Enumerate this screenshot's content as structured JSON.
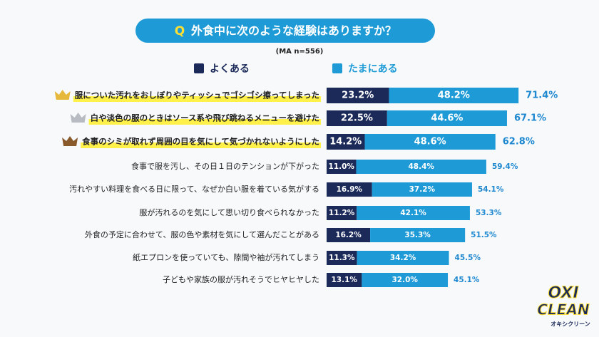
{
  "chart_data": {
    "type": "stacked-bar-horizontal",
    "title_marker": "Q",
    "title": "外食中に次のような経験はありますか？",
    "subtitle": "(MA n=556)",
    "categories": [
      "服についた汚れをおしぼりやティッシュでゴシゴシ擦ってしまった",
      "白や淡色の服のときはソース系や飛び跳ねるメニューを避けた",
      "食事のシミが取れず周囲の目を気にして気づかれないようにした",
      "食事で服を汚し、その日１日のテンションが下がった",
      "汚れやすい料理を食べる日に限って、なぜか白い服を着ている気がする",
      "服が汚れるのを気にして思い切り食べられなかった",
      "外食の予定に合わせて、服の色や素材を気にして選んだことがある",
      "紙エプロンを使っていても、隙間や袖が汚れてしまう",
      "子どもや家族の服が汚れそうでヒヤヒヤした"
    ],
    "series": [
      {
        "name": "よくある",
        "color": "#1c2a5a",
        "values": [
          23.2,
          22.5,
          14.2,
          11.0,
          16.9,
          11.2,
          16.2,
          11.3,
          13.1
        ],
        "value_labels": [
          "23.2%",
          "22.5%",
          "14.2%",
          "11.0%",
          "16.9%",
          "11.2%",
          "16.2%",
          "11.3%",
          "13.1%"
        ]
      },
      {
        "name": "たまにある",
        "color": "#1e9bd7",
        "values": [
          48.2,
          44.6,
          48.6,
          48.4,
          37.2,
          42.1,
          35.3,
          34.2,
          32.0
        ],
        "value_labels": [
          "48.2%",
          "44.6%",
          "48.6%",
          "48.4%",
          "37.2%",
          "42.1%",
          "35.3%",
          "34.2%",
          "32.0%"
        ]
      }
    ],
    "totals": [
      71.4,
      67.1,
      62.8,
      59.4,
      54.1,
      53.3,
      51.5,
      45.5,
      45.1
    ],
    "total_labels": [
      "71.4%",
      "67.1%",
      "62.8%",
      "59.4%",
      "54.1%",
      "53.3%",
      "51.5%",
      "45.5%",
      "45.1%"
    ],
    "total_color": "#1e88d0"
  },
  "logo": {
    "line1": "OXI",
    "line2": "CLEAN",
    "line3": "オキシクリーン"
  }
}
